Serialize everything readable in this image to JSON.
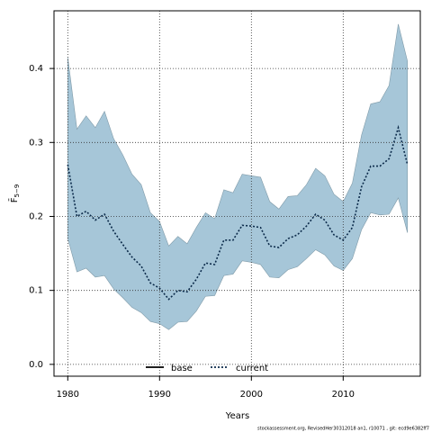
{
  "chart_data": {
    "type": "line",
    "xlabel": "Years",
    "ylabel": {
      "main": "F̄",
      "sub": "5−9"
    },
    "x": [
      1980,
      1981,
      1982,
      1983,
      1984,
      1985,
      1986,
      1987,
      1988,
      1989,
      1990,
      1991,
      1992,
      1993,
      1994,
      1995,
      1996,
      1997,
      1998,
      1999,
      2000,
      2001,
      2002,
      2003,
      2004,
      2005,
      2006,
      2007,
      2008,
      2009,
      2010,
      2011,
      2012,
      2013,
      2014,
      2015,
      2016,
      2017
    ],
    "series": [
      {
        "name": "current",
        "color": "#0b2a4a",
        "band_color": "#a6c6d8",
        "values": [
          0.27,
          0.2,
          0.207,
          0.195,
          0.203,
          0.18,
          0.162,
          0.145,
          0.133,
          0.11,
          0.103,
          0.088,
          0.1,
          0.098,
          0.115,
          0.137,
          0.135,
          0.168,
          0.168,
          0.188,
          0.187,
          0.185,
          0.16,
          0.158,
          0.17,
          0.175,
          0.187,
          0.203,
          0.195,
          0.175,
          0.168,
          0.185,
          0.24,
          0.268,
          0.268,
          0.278,
          0.32,
          0.27
        ],
        "upper": [
          0.415,
          0.318,
          0.336,
          0.32,
          0.342,
          0.305,
          0.283,
          0.257,
          0.243,
          0.205,
          0.193,
          0.16,
          0.173,
          0.163,
          0.185,
          0.205,
          0.197,
          0.236,
          0.232,
          0.257,
          0.255,
          0.253,
          0.22,
          0.21,
          0.227,
          0.228,
          0.243,
          0.265,
          0.255,
          0.23,
          0.22,
          0.245,
          0.31,
          0.352,
          0.355,
          0.377,
          0.46,
          0.41
        ],
        "lower": [
          0.17,
          0.125,
          0.13,
          0.118,
          0.12,
          0.102,
          0.09,
          0.077,
          0.07,
          0.058,
          0.055,
          0.047,
          0.057,
          0.058,
          0.072,
          0.092,
          0.093,
          0.12,
          0.122,
          0.14,
          0.138,
          0.135,
          0.118,
          0.117,
          0.128,
          0.132,
          0.143,
          0.155,
          0.148,
          0.133,
          0.127,
          0.143,
          0.182,
          0.205,
          0.202,
          0.203,
          0.225,
          0.178
        ]
      }
    ],
    "legend": [
      {
        "name": "base",
        "color": "#000000",
        "style": "solid"
      },
      {
        "name": "current",
        "color": "#0b2a4a",
        "style": "dotted"
      }
    ],
    "xlim": [
      1978.5,
      2018.4
    ],
    "ylim": [
      -0.016,
      0.478
    ],
    "xticks": [
      1980,
      1990,
      2000,
      2010
    ],
    "yticks": [
      {
        "value": 0,
        "label": "0.0"
      },
      0.1,
      0.2,
      0.3,
      0.4
    ],
    "grid": true,
    "footnote": "stockassessment.org, RevisedHer30312018 an1, r10071 , git: ecd9e6382ff7"
  }
}
